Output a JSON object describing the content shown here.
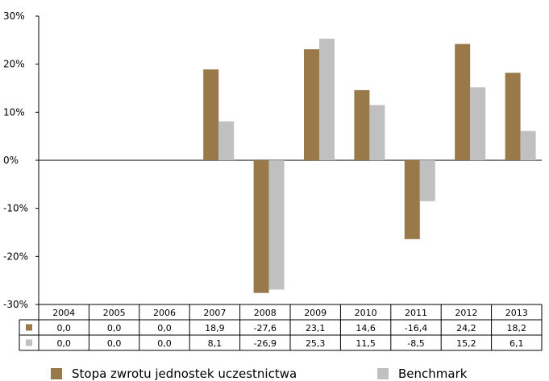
{
  "chart_data": {
    "type": "bar",
    "categories": [
      "2004",
      "2005",
      "2006",
      "2007",
      "2008",
      "2009",
      "2010",
      "2011",
      "2012",
      "2013"
    ],
    "series": [
      {
        "name": "Stopa zwrotu jednostek uczestnictwa",
        "values": [
          0.0,
          0.0,
          0.0,
          18.9,
          -27.6,
          23.1,
          14.6,
          -16.4,
          24.2,
          18.2
        ],
        "labels": [
          "0,0",
          "0,0",
          "0,0",
          "18,9",
          "-27,6",
          "23,1",
          "14,6",
          "-16,4",
          "24,2",
          "18,2"
        ],
        "color": "#99794a"
      },
      {
        "name": "Benchmark",
        "values": [
          0.0,
          0.0,
          0.0,
          8.1,
          -26.9,
          25.3,
          11.5,
          -8.5,
          15.2,
          6.1
        ],
        "labels": [
          "0,0",
          "0,0",
          "0,0",
          "8,1",
          "-26,9",
          "25,3",
          "11,5",
          "-8,5",
          "15,2",
          "6,1"
        ],
        "color": "#c0c0c0"
      }
    ],
    "y_ticks": [
      -30,
      -20,
      -10,
      0,
      10,
      20,
      30
    ],
    "y_tick_labels": [
      "-30%",
      "-20%",
      "-10%",
      "0%",
      "10%",
      "20%",
      "30%"
    ],
    "ylim": [
      -30,
      30
    ],
    "grid": false,
    "legend_position": "bottom"
  }
}
